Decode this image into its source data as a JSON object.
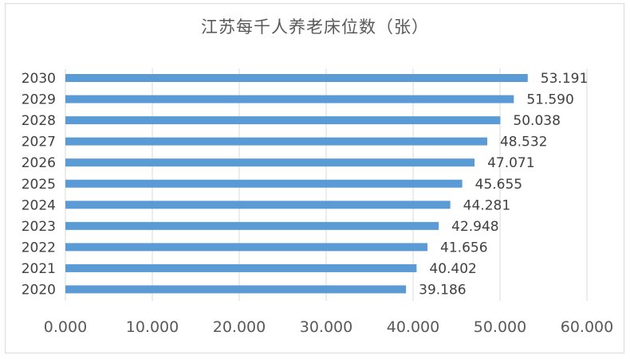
{
  "chart_data": {
    "type": "bar",
    "orientation": "horizontal",
    "title": "江苏每千人养老床位数（张）",
    "xlabel": "",
    "ylabel": "",
    "categories": [
      "2030",
      "2029",
      "2028",
      "2027",
      "2026",
      "2025",
      "2024",
      "2023",
      "2022",
      "2021",
      "2020"
    ],
    "values": [
      53.191,
      51.59,
      50.038,
      48.532,
      47.071,
      45.655,
      44.281,
      42.948,
      41.656,
      40.402,
      39.186
    ],
    "value_labels": [
      "53.191",
      "51.590",
      "50.038",
      "48.532",
      "47.071",
      "45.655",
      "44.281",
      "42.948",
      "41.656",
      "40.402",
      "39.186"
    ],
    "xlim": [
      0,
      60
    ],
    "x_ticks": [
      "0.000",
      "10.000",
      "20.000",
      "30.000",
      "40.000",
      "50.000",
      "60.000"
    ],
    "grid": "vertical",
    "legend": "none",
    "bar_color": "#5b9bd5",
    "grid_color": "#d9d9d9"
  }
}
